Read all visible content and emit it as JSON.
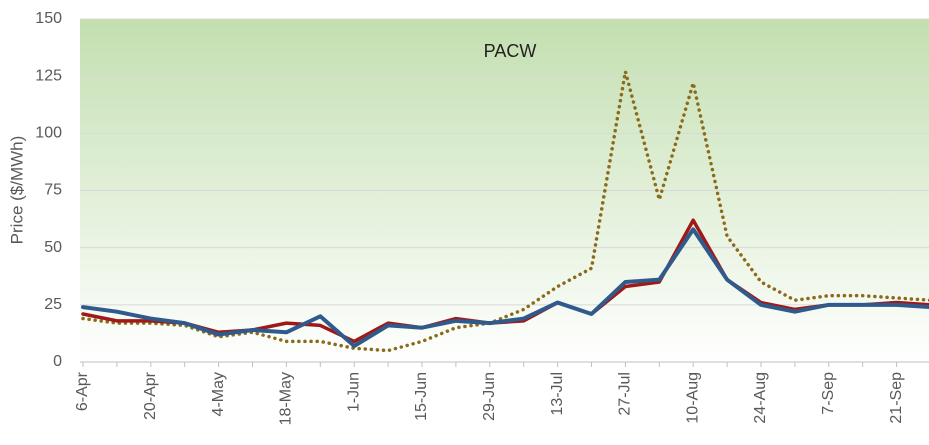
{
  "chart_data": {
    "type": "line",
    "title": "PACW",
    "y_label": "Price ($/MWh)",
    "categories": [
      "6-Apr",
      null,
      "20-Apr",
      null,
      "4-May",
      null,
      "18-May",
      null,
      "1-Jun",
      null,
      "15-Jun",
      null,
      "29-Jun",
      null,
      "13-Jul",
      null,
      "27-Jul",
      null,
      "10-Aug",
      null,
      "24-Aug",
      null,
      "7-Sep",
      null,
      "21-Sep",
      null
    ],
    "series": [
      {
        "color": "#8b6a1a",
        "style": "dotted",
        "values": [
          19,
          17,
          17,
          16,
          11,
          13,
          9,
          9,
          6,
          5,
          9,
          15,
          17,
          23,
          33,
          41,
          127,
          71,
          122,
          55,
          35,
          27,
          29,
          29,
          28,
          27
        ]
      },
      {
        "color": "#a01818",
        "style": "solid",
        "values": [
          21,
          18,
          18,
          17,
          13,
          14,
          17,
          16,
          9,
          17,
          15,
          19,
          17,
          18,
          26,
          21,
          33,
          35,
          62,
          36,
          26,
          23,
          25,
          25,
          26,
          25
        ]
      },
      {
        "color": "#2f5b8c",
        "style": "solid",
        "values": [
          24,
          22,
          19,
          17,
          12,
          14,
          13,
          20,
          7,
          16,
          15,
          18,
          17,
          19,
          26,
          21,
          35,
          36,
          58,
          36,
          25,
          22,
          25,
          25,
          25,
          24
        ]
      }
    ],
    "ylim": [
      0,
      150
    ],
    "yticks": [
      0,
      25,
      50,
      75,
      100,
      125,
      150
    ],
    "grid": true
  }
}
